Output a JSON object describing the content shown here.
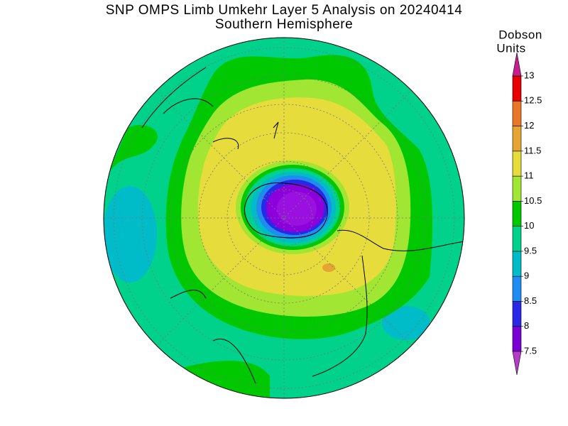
{
  "title": "SNP OMPS Limb Umkehr Layer 5 Analysis on 20240414",
  "subtitle": "Southern Hemisphere",
  "colorbar": {
    "label_lines": [
      "Dobson",
      "Units"
    ],
    "ticks": [
      7.5,
      8,
      8.5,
      9,
      9.5,
      10,
      10.5,
      11,
      11.5,
      12,
      12.5,
      13
    ],
    "colors": [
      "#7800d2",
      "#2828e6",
      "#1e8cf0",
      "#00bcc8",
      "#00d28c",
      "#00c800",
      "#a0e632",
      "#e6dc3c",
      "#e6a532",
      "#e67828",
      "#e60000"
    ],
    "under_color": "#b43cc8",
    "over_color": "#c81e8c"
  }
}
